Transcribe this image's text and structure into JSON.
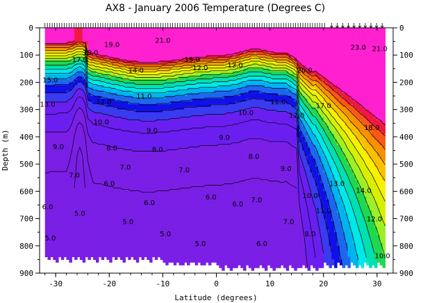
{
  "chart_data": {
    "type": "heatmap",
    "title": "AX8 - January 2006    Temperature (Degrees C)",
    "xlabel": "Latitude (degrees)",
    "ylabel": "Depth (m)",
    "xlim": [
      -33,
      33
    ],
    "ylim": [
      0,
      900
    ],
    "y_inverted": true,
    "x_ticks": [
      -30,
      -20,
      -10,
      0,
      10,
      20,
      30
    ],
    "y_ticks": [
      0,
      100,
      200,
      300,
      400,
      500,
      600,
      700,
      800,
      900
    ],
    "grid": false,
    "colors": {
      "5-7": "#7a1fe6",
      "7-9": "#6a1ff0",
      "9-10": "#3a3af0",
      "10-11": "#1010e8",
      "11-12": "#1e66f0",
      "12-13": "#00b4f0",
      "13-14": "#00e8e8",
      "14-15": "#00e0b0",
      "15-16": "#20d850",
      "16-17": "#9cf028",
      "17-18": "#d8f000",
      "18-19": "#f8f000",
      "19-20": "#f8c000",
      "20-21": "#f89000",
      "21-22": "#f85818",
      "22-23": "#f01840",
      "23+": "#ff20d0"
    },
    "contour_labels": [
      {
        "lat": -23.5,
        "depth": 100,
        "text": "19.0"
      },
      {
        "lat": -19.5,
        "depth": 70,
        "text": "19.0"
      },
      {
        "lat": -10.0,
        "depth": 55,
        "text": "21.0"
      },
      {
        "lat": -25.5,
        "depth": 125,
        "text": "17.0"
      },
      {
        "lat": -15.0,
        "depth": 165,
        "text": "14.0"
      },
      {
        "lat": -4.5,
        "depth": 125,
        "text": "15.0"
      },
      {
        "lat": -31.0,
        "depth": 200,
        "text": "15.0"
      },
      {
        "lat": -31.5,
        "depth": 290,
        "text": "13.0"
      },
      {
        "lat": -21.0,
        "depth": 280,
        "text": "12.0"
      },
      {
        "lat": -13.5,
        "depth": 260,
        "text": "11.0"
      },
      {
        "lat": -21.5,
        "depth": 355,
        "text": "10.0"
      },
      {
        "lat": -12.0,
        "depth": 385,
        "text": "9.0"
      },
      {
        "lat": -29.5,
        "depth": 445,
        "text": "9.0"
      },
      {
        "lat": -19.5,
        "depth": 450,
        "text": "8.0"
      },
      {
        "lat": -11.0,
        "depth": 455,
        "text": "8.0"
      },
      {
        "lat": -17.0,
        "depth": 520,
        "text": "7.0"
      },
      {
        "lat": -6.0,
        "depth": 530,
        "text": "7.0"
      },
      {
        "lat": -26.5,
        "depth": 550,
        "text": "7.0"
      },
      {
        "lat": -20.0,
        "depth": 580,
        "text": "6.0"
      },
      {
        "lat": -12.5,
        "depth": 650,
        "text": "6.0"
      },
      {
        "lat": -1.0,
        "depth": 630,
        "text": "6.0"
      },
      {
        "lat": -31.5,
        "depth": 665,
        "text": "6.0"
      },
      {
        "lat": -25.5,
        "depth": 690,
        "text": "5.0"
      },
      {
        "lat": -16.5,
        "depth": 720,
        "text": "5.0"
      },
      {
        "lat": -3.0,
        "depth": 800,
        "text": "5.0"
      },
      {
        "lat": -9.5,
        "depth": 765,
        "text": "5.0"
      },
      {
        "lat": -31.0,
        "depth": 780,
        "text": "5.0"
      },
      {
        "lat": 3.5,
        "depth": 145,
        "text": "13.0"
      },
      {
        "lat": -3.0,
        "depth": 155,
        "text": "12.0"
      },
      {
        "lat": 1.5,
        "depth": 410,
        "text": "9.0"
      },
      {
        "lat": 5.5,
        "depth": 320,
        "text": "10.0"
      },
      {
        "lat": 11.5,
        "depth": 280,
        "text": "11.0"
      },
      {
        "lat": 15.0,
        "depth": 330,
        "text": "12.0"
      },
      {
        "lat": 7.0,
        "depth": 480,
        "text": "8.0"
      },
      {
        "lat": 13.0,
        "depth": 525,
        "text": "9.0"
      },
      {
        "lat": 7.5,
        "depth": 640,
        "text": "7.0"
      },
      {
        "lat": 13.5,
        "depth": 720,
        "text": "7.0"
      },
      {
        "lat": 4.0,
        "depth": 655,
        "text": "6.0"
      },
      {
        "lat": 8.5,
        "depth": 800,
        "text": "6.0"
      },
      {
        "lat": 17.5,
        "depth": 765,
        "text": "8.0"
      },
      {
        "lat": 17.5,
        "depth": 625,
        "text": "10.0"
      },
      {
        "lat": 20.0,
        "depth": 680,
        "text": "11.0"
      },
      {
        "lat": 22.5,
        "depth": 580,
        "text": "13.0"
      },
      {
        "lat": 27.5,
        "depth": 605,
        "text": "14.0"
      },
      {
        "lat": 29.5,
        "depth": 710,
        "text": "12.0"
      },
      {
        "lat": 31.0,
        "depth": 845,
        "text": "10.0"
      },
      {
        "lat": 20.0,
        "depth": 295,
        "text": "17.0"
      },
      {
        "lat": 29.0,
        "depth": 375,
        "text": "18.0"
      },
      {
        "lat": 16.5,
        "depth": 165,
        "text": "20.0"
      },
      {
        "lat": 30.5,
        "depth": 85,
        "text": "21.0"
      },
      {
        "lat": 26.5,
        "depth": 80,
        "text": "23.0"
      }
    ]
  }
}
